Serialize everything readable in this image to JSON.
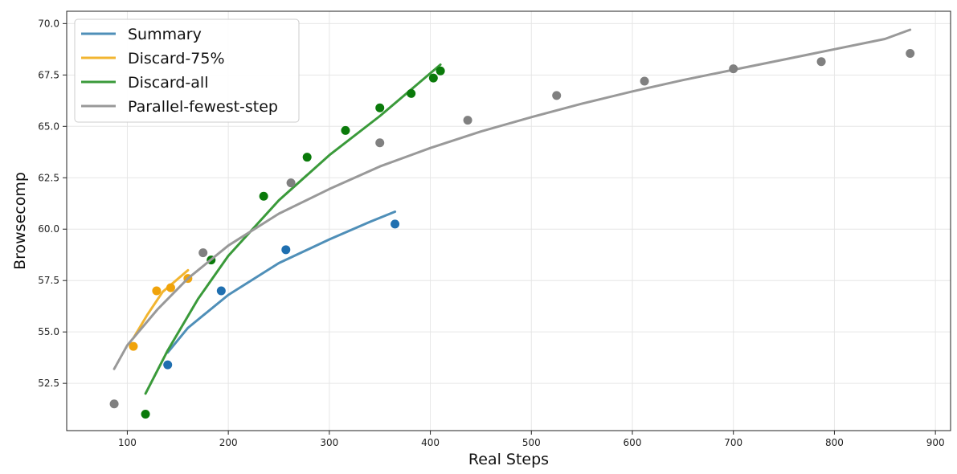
{
  "chart_data": {
    "type": "scatter",
    "title": "",
    "xlabel": "Real Steps",
    "ylabel": "Browsecomp",
    "xlim": [
      40,
      915
    ],
    "ylim": [
      50.2,
      70.6
    ],
    "xticks": [
      100,
      200,
      300,
      400,
      500,
      600,
      700,
      800,
      900
    ],
    "yticks": [
      52.5,
      55.0,
      57.5,
      60.0,
      62.5,
      65.0,
      67.5,
      70.0
    ],
    "xtick_labels": [
      "100",
      "200",
      "300",
      "400",
      "500",
      "600",
      "700",
      "800",
      "900"
    ],
    "ytick_labels": [
      "52.5",
      "55.0",
      "57.5",
      "60.0",
      "62.5",
      "65.0",
      "67.5",
      "70.0"
    ],
    "grid": true,
    "legend_position": "top-left",
    "series": [
      {
        "name": "Summary",
        "line_color": "#4f8fb8",
        "point_color": "#1f6fb0",
        "points": [
          [
            140,
            53.4
          ],
          [
            193,
            57.0
          ],
          [
            257,
            59.0
          ],
          [
            365,
            60.25
          ]
        ],
        "fit": [
          [
            140,
            54.0
          ],
          [
            160,
            55.2
          ],
          [
            200,
            56.8
          ],
          [
            250,
            58.35
          ],
          [
            300,
            59.5
          ],
          [
            340,
            60.35
          ],
          [
            365,
            60.85
          ]
        ]
      },
      {
        "name": "Discard-75%",
        "line_color": "#f2b530",
        "point_color": "#f0a30a",
        "points": [
          [
            106,
            54.3
          ],
          [
            129,
            57.0
          ],
          [
            143,
            57.15
          ],
          [
            160,
            57.6
          ]
        ],
        "fit": [
          [
            106,
            54.7
          ],
          [
            120,
            55.85
          ],
          [
            135,
            56.95
          ],
          [
            160,
            58.0
          ]
        ]
      },
      {
        "name": "Discard-all",
        "line_color": "#3a9a3a",
        "point_color": "#0a7a0a",
        "points": [
          [
            118,
            51.0
          ],
          [
            183,
            58.5
          ],
          [
            235,
            61.6
          ],
          [
            278,
            63.5
          ],
          [
            316,
            64.8
          ],
          [
            350,
            65.9
          ],
          [
            381,
            66.6
          ],
          [
            403,
            67.35
          ],
          [
            410,
            67.7
          ]
        ],
        "fit": [
          [
            118,
            52.0
          ],
          [
            140,
            54.1
          ],
          [
            170,
            56.6
          ],
          [
            200,
            58.7
          ],
          [
            250,
            61.4
          ],
          [
            300,
            63.6
          ],
          [
            350,
            65.5
          ],
          [
            410,
            68.0
          ]
        ]
      },
      {
        "name": "Parallel-fewest-step",
        "line_color": "#999999",
        "point_color": "#808080",
        "points": [
          [
            87,
            51.5
          ],
          [
            175,
            58.85
          ],
          [
            262,
            62.25
          ],
          [
            350,
            64.2
          ],
          [
            437,
            65.3
          ],
          [
            525,
            66.5
          ],
          [
            612,
            67.2
          ],
          [
            700,
            67.8
          ],
          [
            787,
            68.15
          ],
          [
            875,
            68.55
          ]
        ],
        "fit": [
          [
            87,
            53.2
          ],
          [
            100,
            54.35
          ],
          [
            130,
            56.1
          ],
          [
            160,
            57.6
          ],
          [
            200,
            59.2
          ],
          [
            250,
            60.75
          ],
          [
            300,
            61.95
          ],
          [
            350,
            63.05
          ],
          [
            400,
            63.95
          ],
          [
            450,
            64.75
          ],
          [
            500,
            65.45
          ],
          [
            550,
            66.1
          ],
          [
            600,
            66.7
          ],
          [
            650,
            67.25
          ],
          [
            700,
            67.75
          ],
          [
            750,
            68.25
          ],
          [
            800,
            68.75
          ],
          [
            850,
            69.25
          ],
          [
            875,
            69.7
          ]
        ]
      }
    ]
  }
}
